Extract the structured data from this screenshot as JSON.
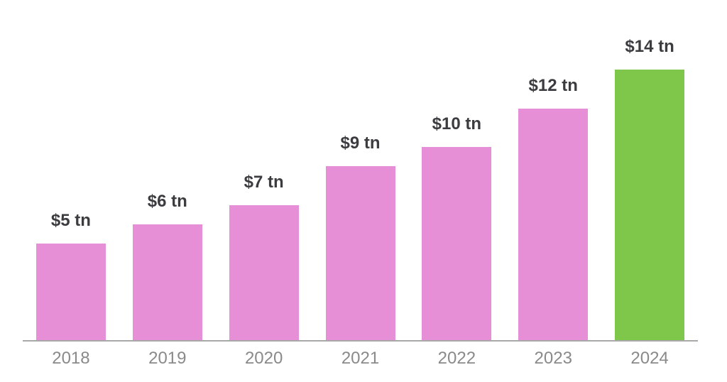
{
  "chart_data": {
    "type": "bar",
    "title": "",
    "xlabel": "",
    "ylabel": "",
    "categories": [
      "2018",
      "2019",
      "2020",
      "2021",
      "2022",
      "2023",
      "2024"
    ],
    "values": [
      5,
      6,
      7,
      9,
      10,
      12,
      14
    ],
    "ylim": [
      0,
      15
    ],
    "grid": false,
    "legend": false,
    "value_label_unit": "tn",
    "points": [
      {
        "year": "2018",
        "value": 5,
        "label": "$5 tn",
        "color": "#E78FD6"
      },
      {
        "year": "2019",
        "value": 6,
        "label": "$6 tn",
        "color": "#E78FD6"
      },
      {
        "year": "2020",
        "value": 7,
        "label": "$7 tn",
        "color": "#E78FD6"
      },
      {
        "year": "2021",
        "value": 9,
        "label": "$9 tn",
        "color": "#E78FD6"
      },
      {
        "year": "2022",
        "value": 10,
        "label": "$10 tn",
        "color": "#E78FD6"
      },
      {
        "year": "2023",
        "value": 12,
        "label": "$12 tn",
        "color": "#E78FD6"
      },
      {
        "year": "2024",
        "value": 14,
        "label": "$14 tn",
        "color": "#7EC74B"
      }
    ],
    "colors": {
      "bar_default": "#E78FD6",
      "bar_highlight": "#7EC74B",
      "value_label": "#3B3B40",
      "tick_label": "#8A8A8A",
      "axis_line": "#A8A8A8"
    }
  }
}
